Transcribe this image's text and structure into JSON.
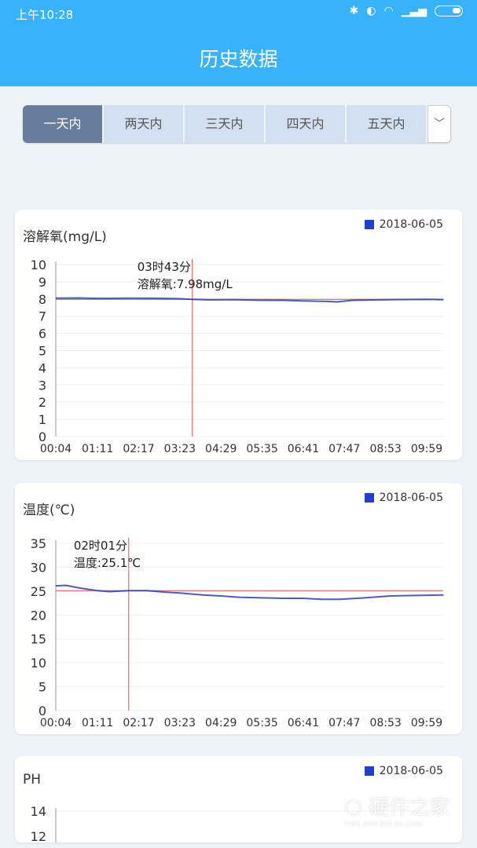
{
  "status_bar": {
    "time": "上午10:28",
    "icons": [
      "bluetooth-icon",
      "toggle-icon",
      "wifi-icon",
      "signal-icon",
      "battery-icon"
    ]
  },
  "header": {
    "title": "历史数据"
  },
  "tabs": [
    {
      "label": "一天内",
      "active": true
    },
    {
      "label": "两天内"
    },
    {
      "label": "三天内"
    },
    {
      "label": "四天内"
    },
    {
      "label": "五天内"
    }
  ],
  "tabs_more_icon": "chevron-down-icon",
  "colors": {
    "header": "#38b3fb",
    "active_tab": "#687d9c",
    "series": "#1f3ecf",
    "crosshair": "#e05050"
  },
  "chart_data": [
    {
      "type": "line",
      "title": "溶解氧(mg/L)",
      "legend": "2018-06-05",
      "ylim": [
        0,
        10
      ],
      "yticks": [
        0,
        1,
        2,
        3,
        4,
        5,
        6,
        7,
        8,
        9,
        10
      ],
      "xticks": [
        "00:04",
        "01:11",
        "02:17",
        "03:23",
        "04:29",
        "05:35",
        "06:41",
        "07:47",
        "08:53",
        "09:59"
      ],
      "x": [
        "00:04",
        "00:40",
        "01:20",
        "02:00",
        "02:40",
        "03:20",
        "03:43",
        "04:10",
        "04:50",
        "05:30",
        "06:10",
        "06:50",
        "07:20",
        "07:35",
        "08:00",
        "08:40",
        "09:20",
        "10:00",
        "10:26"
      ],
      "y": [
        8.05,
        8.06,
        8.03,
        8.05,
        8.04,
        8.02,
        7.98,
        7.95,
        7.96,
        7.93,
        7.92,
        7.88,
        7.86,
        7.83,
        7.92,
        7.95,
        7.97,
        7.98,
        7.96
      ],
      "tooltip": {
        "time": "03时43分",
        "value": "溶解氧:7.98mg/L",
        "x": "03:43",
        "y": 7.98
      }
    },
    {
      "type": "line",
      "title": "温度(℃)",
      "legend": "2018-06-05",
      "ylim": [
        0,
        35
      ],
      "yticks": [
        0,
        5,
        10,
        15,
        20,
        25,
        30,
        35
      ],
      "xticks": [
        "00:04",
        "01:11",
        "02:17",
        "03:23",
        "04:29",
        "05:35",
        "06:41",
        "07:47",
        "08:53",
        "09:59"
      ],
      "x": [
        "00:04",
        "00:20",
        "00:45",
        "01:11",
        "01:30",
        "02:01",
        "02:30",
        "03:00",
        "03:23",
        "04:00",
        "04:29",
        "05:00",
        "05:35",
        "06:10",
        "06:41",
        "07:10",
        "07:40",
        "08:20",
        "09:00",
        "09:40",
        "10:26"
      ],
      "y": [
        26.1,
        26.2,
        25.6,
        25.1,
        24.9,
        25.1,
        25.1,
        24.8,
        24.6,
        24.2,
        24.0,
        23.7,
        23.6,
        23.5,
        23.5,
        23.3,
        23.3,
        23.6,
        24.0,
        24.1,
        24.2
      ],
      "tooltip": {
        "time": "02时01分",
        "value": "温度:25.1℃",
        "x": "02:01",
        "y": 25.1
      }
    },
    {
      "type": "line",
      "title": "PH",
      "legend": "2018-06-05",
      "yticks_visible": [
        12,
        14
      ]
    }
  ],
  "watermark": {
    "text": "硬件之家",
    "sub": "YING JIAN ZHI JIA.COM"
  }
}
